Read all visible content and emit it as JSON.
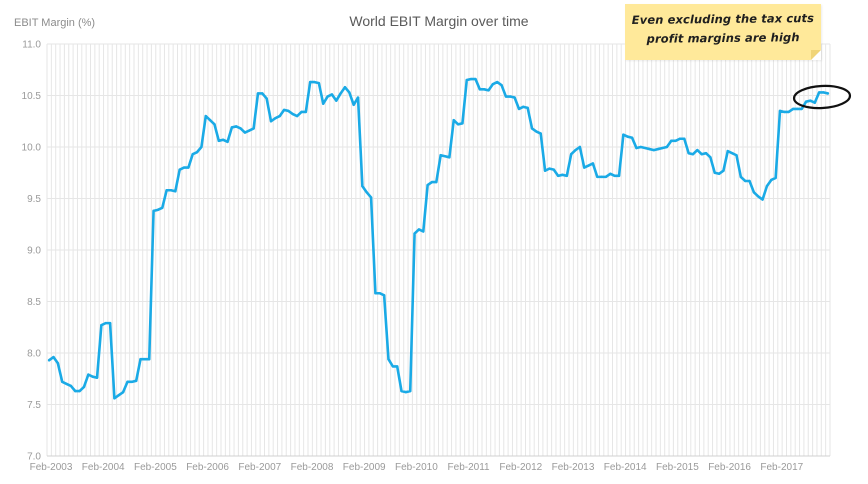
{
  "chart_data": {
    "type": "line",
    "title": "World EBIT Margin over time",
    "ylabel": "EBIT Margin (%)",
    "xlabel": "",
    "ylim": [
      7.0,
      11.0
    ],
    "yticks": [
      "7.0",
      "7.5",
      "8.0",
      "8.5",
      "9.0",
      "9.5",
      "10.0",
      "10.5",
      "11.0"
    ],
    "xticks": [
      "Feb-2003",
      "Feb-2004",
      "Feb-2005",
      "Feb-2006",
      "Feb-2007",
      "Feb-2008",
      "Feb-2009",
      "Feb-2010",
      "Feb-2011",
      "Feb-2012",
      "Feb-2013",
      "Feb-2014",
      "Feb-2015",
      "Feb-2016",
      "Feb-2017"
    ],
    "grid": true,
    "legend": "none",
    "series": [
      {
        "color": "#1aaae6",
        "points": [
          [
            "2003-02",
            7.93
          ],
          [
            "2003-03",
            7.96
          ],
          [
            "2003-04",
            7.9
          ],
          [
            "2003-05",
            7.72
          ],
          [
            "2003-06",
            7.7
          ],
          [
            "2003-07",
            7.68
          ],
          [
            "2003-08",
            7.63
          ],
          [
            "2003-09",
            7.63
          ],
          [
            "2003-10",
            7.67
          ],
          [
            "2003-11",
            7.79
          ],
          [
            "2003-12",
            7.77
          ],
          [
            "2004-01",
            7.76
          ],
          [
            "2004-02",
            8.27
          ],
          [
            "2004-03",
            8.29
          ],
          [
            "2004-04",
            8.29
          ],
          [
            "2004-05",
            7.56
          ],
          [
            "2004-06",
            7.59
          ],
          [
            "2004-07",
            7.62
          ],
          [
            "2004-08",
            7.72
          ],
          [
            "2004-09",
            7.72
          ],
          [
            "2004-10",
            7.73
          ],
          [
            "2004-11",
            7.94
          ],
          [
            "2004-12",
            7.94
          ],
          [
            "2005-01",
            7.94
          ],
          [
            "2005-02",
            9.38
          ],
          [
            "2005-03",
            9.39
          ],
          [
            "2005-04",
            9.41
          ],
          [
            "2005-05",
            9.58
          ],
          [
            "2005-06",
            9.58
          ],
          [
            "2005-07",
            9.57
          ],
          [
            "2005-08",
            9.78
          ],
          [
            "2005-09",
            9.8
          ],
          [
            "2005-10",
            9.8
          ],
          [
            "2005-11",
            9.93
          ],
          [
            "2005-12",
            9.95
          ],
          [
            "2006-01",
            10.0
          ],
          [
            "2006-02",
            10.3
          ],
          [
            "2006-03",
            10.26
          ],
          [
            "2006-04",
            10.22
          ],
          [
            "2006-05",
            10.06
          ],
          [
            "2006-06",
            10.07
          ],
          [
            "2006-07",
            10.05
          ],
          [
            "2006-08",
            10.19
          ],
          [
            "2006-09",
            10.2
          ],
          [
            "2006-10",
            10.18
          ],
          [
            "2006-11",
            10.14
          ],
          [
            "2006-12",
            10.16
          ],
          [
            "2007-01",
            10.18
          ],
          [
            "2007-02",
            10.52
          ],
          [
            "2007-03",
            10.52
          ],
          [
            "2007-04",
            10.47
          ],
          [
            "2007-05",
            10.25
          ],
          [
            "2007-06",
            10.28
          ],
          [
            "2007-07",
            10.3
          ],
          [
            "2007-08",
            10.36
          ],
          [
            "2007-09",
            10.35
          ],
          [
            "2007-10",
            10.32
          ],
          [
            "2007-11",
            10.3
          ],
          [
            "2007-12",
            10.34
          ],
          [
            "2008-01",
            10.34
          ],
          [
            "2008-02",
            10.63
          ],
          [
            "2008-03",
            10.63
          ],
          [
            "2008-04",
            10.62
          ],
          [
            "2008-05",
            10.42
          ],
          [
            "2008-06",
            10.49
          ],
          [
            "2008-07",
            10.51
          ],
          [
            "2008-08",
            10.45
          ],
          [
            "2008-09",
            10.52
          ],
          [
            "2008-10",
            10.58
          ],
          [
            "2008-11",
            10.53
          ],
          [
            "2008-12",
            10.41
          ],
          [
            "2009-01",
            10.48
          ],
          [
            "2009-02",
            9.62
          ],
          [
            "2009-03",
            9.56
          ],
          [
            "2009-04",
            9.51
          ],
          [
            "2009-05",
            8.58
          ],
          [
            "2009-06",
            8.58
          ],
          [
            "2009-07",
            8.56
          ],
          [
            "2009-08",
            7.94
          ],
          [
            "2009-09",
            7.87
          ],
          [
            "2009-10",
            7.87
          ],
          [
            "2009-11",
            7.63
          ],
          [
            "2009-12",
            7.62
          ],
          [
            "2010-01",
            7.63
          ],
          [
            "2010-02",
            9.16
          ],
          [
            "2010-03",
            9.2
          ],
          [
            "2010-04",
            9.18
          ],
          [
            "2010-05",
            9.63
          ],
          [
            "2010-06",
            9.66
          ],
          [
            "2010-07",
            9.66
          ],
          [
            "2010-08",
            9.92
          ],
          [
            "2010-09",
            9.91
          ],
          [
            "2010-10",
            9.9
          ],
          [
            "2010-11",
            10.26
          ],
          [
            "2010-12",
            10.22
          ],
          [
            "2011-01",
            10.23
          ],
          [
            "2011-02",
            10.65
          ],
          [
            "2011-03",
            10.66
          ],
          [
            "2011-04",
            10.66
          ],
          [
            "2011-05",
            10.56
          ],
          [
            "2011-06",
            10.56
          ],
          [
            "2011-07",
            10.55
          ],
          [
            "2011-08",
            10.61
          ],
          [
            "2011-09",
            10.63
          ],
          [
            "2011-10",
            10.6
          ],
          [
            "2011-11",
            10.49
          ],
          [
            "2011-12",
            10.49
          ],
          [
            "2012-01",
            10.48
          ],
          [
            "2012-02",
            10.37
          ],
          [
            "2012-03",
            10.39
          ],
          [
            "2012-04",
            10.38
          ],
          [
            "2012-05",
            10.18
          ],
          [
            "2012-06",
            10.15
          ],
          [
            "2012-07",
            10.13
          ],
          [
            "2012-08",
            9.77
          ],
          [
            "2012-09",
            9.79
          ],
          [
            "2012-10",
            9.78
          ],
          [
            "2012-11",
            9.72
          ],
          [
            "2012-12",
            9.73
          ],
          [
            "2013-01",
            9.72
          ],
          [
            "2013-02",
            9.93
          ],
          [
            "2013-03",
            9.97
          ],
          [
            "2013-04",
            10.0
          ],
          [
            "2013-05",
            9.8
          ],
          [
            "2013-06",
            9.82
          ],
          [
            "2013-07",
            9.84
          ],
          [
            "2013-08",
            9.71
          ],
          [
            "2013-09",
            9.71
          ],
          [
            "2013-10",
            9.71
          ],
          [
            "2013-11",
            9.74
          ],
          [
            "2013-12",
            9.72
          ],
          [
            "2014-01",
            9.72
          ],
          [
            "2014-02",
            10.12
          ],
          [
            "2014-03",
            10.1
          ],
          [
            "2014-04",
            10.09
          ],
          [
            "2014-05",
            9.99
          ],
          [
            "2014-06",
            10.0
          ],
          [
            "2014-07",
            9.99
          ],
          [
            "2014-08",
            9.98
          ],
          [
            "2014-09",
            9.97
          ],
          [
            "2014-10",
            9.98
          ],
          [
            "2014-11",
            9.99
          ],
          [
            "2014-12",
            10.0
          ],
          [
            "2015-01",
            10.06
          ],
          [
            "2015-02",
            10.06
          ],
          [
            "2015-03",
            10.08
          ],
          [
            "2015-04",
            10.08
          ],
          [
            "2015-05",
            9.94
          ],
          [
            "2015-06",
            9.93
          ],
          [
            "2015-07",
            9.97
          ],
          [
            "2015-08",
            9.93
          ],
          [
            "2015-09",
            9.94
          ],
          [
            "2015-10",
            9.9
          ],
          [
            "2015-11",
            9.75
          ],
          [
            "2015-12",
            9.74
          ],
          [
            "2016-01",
            9.77
          ],
          [
            "2016-02",
            9.96
          ],
          [
            "2016-03",
            9.94
          ],
          [
            "2016-04",
            9.92
          ],
          [
            "2016-05",
            9.71
          ],
          [
            "2016-06",
            9.67
          ],
          [
            "2016-07",
            9.67
          ],
          [
            "2016-08",
            9.56
          ],
          [
            "2016-09",
            9.52
          ],
          [
            "2016-10",
            9.49
          ],
          [
            "2016-11",
            9.62
          ],
          [
            "2016-12",
            9.68
          ],
          [
            "2017-01",
            9.7
          ],
          [
            "2017-02",
            10.35
          ],
          [
            "2017-03",
            10.34
          ],
          [
            "2017-04",
            10.34
          ],
          [
            "2017-05",
            10.37
          ],
          [
            "2017-06",
            10.37
          ],
          [
            "2017-07",
            10.37
          ],
          [
            "2017-08",
            10.44
          ],
          [
            "2017-09",
            10.45
          ],
          [
            "2017-10",
            10.43
          ],
          [
            "2017-11",
            10.53
          ],
          [
            "2017-12",
            10.53
          ],
          [
            "2018-01",
            10.52
          ]
        ]
      }
    ],
    "annotation": {
      "lines": [
        "Even excluding the tax cuts",
        "profit margins are high"
      ],
      "highlight": "recent peak circled",
      "note_color": "#ffe99a"
    }
  }
}
